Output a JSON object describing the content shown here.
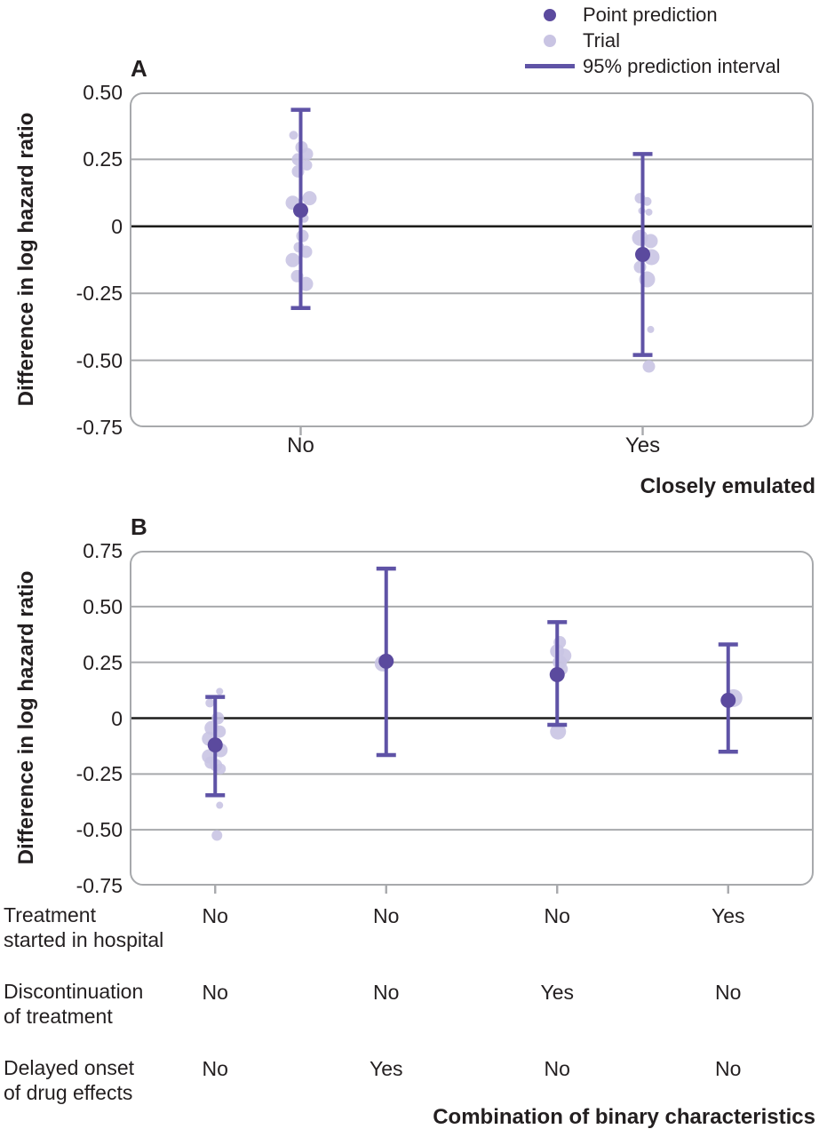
{
  "colors": {
    "point": "#5b4a9e",
    "trial": "#c9c4e3",
    "interval": "#5f53a6",
    "grid": "#a7a9ac",
    "zero_line": "#1d1d1b",
    "text": "#231f20"
  },
  "legend": {
    "items": [
      {
        "label": "Point prediction",
        "swatch": "dot",
        "color": "#5b4a9e"
      },
      {
        "label": "Trial",
        "swatch": "dot",
        "color": "#c9c4e3"
      },
      {
        "label": "95% prediction interval",
        "swatch": "line",
        "color": "#5f53a6"
      }
    ]
  },
  "chart_data": [
    {
      "panel": "A",
      "type": "scatter",
      "ylabel": "Difference in log hazard ratio",
      "xlabel": "Closely emulated",
      "ylim": [
        -0.75,
        0.5
      ],
      "ytick_values": [
        0.5,
        0.25,
        0,
        -0.25,
        -0.5,
        -0.75
      ],
      "ytick_labels": [
        "0.50",
        "0.25",
        "0",
        "-0.25",
        "-0.50",
        "-0.75"
      ],
      "grid": true,
      "legend_position": "top-right",
      "categories": [
        "No",
        "Yes"
      ],
      "groups": [
        {
          "category": "No",
          "point_prediction": 0.06,
          "interval": [
            -0.305,
            0.435
          ],
          "trials": [
            [
              -8,
              0.34,
              5
            ],
            [
              1,
              0.295,
              7
            ],
            [
              7,
              0.27,
              7
            ],
            [
              -3,
              0.25,
              7
            ],
            [
              7,
              0.228,
              6
            ],
            [
              -3,
              0.205,
              7
            ],
            [
              10,
              0.105,
              8
            ],
            [
              -9,
              0.088,
              8
            ],
            [
              4,
              0.03,
              5
            ],
            [
              2,
              -0.036,
              7
            ],
            [
              -2,
              -0.078,
              6
            ],
            [
              6,
              -0.095,
              7
            ],
            [
              -9,
              -0.126,
              8
            ],
            [
              -4,
              -0.186,
              7
            ],
            [
              6,
              -0.215,
              8
            ]
          ]
        },
        {
          "category": "Yes",
          "point_prediction": -0.105,
          "interval": [
            -0.48,
            0.27
          ],
          "trials": [
            [
              -3,
              0.105,
              6
            ],
            [
              5,
              0.093,
              5
            ],
            [
              -1,
              0.058,
              4
            ],
            [
              7,
              0.053,
              4
            ],
            [
              -3,
              -0.043,
              9
            ],
            [
              9,
              -0.055,
              8
            ],
            [
              10,
              -0.115,
              9
            ],
            [
              -3,
              -0.152,
              7
            ],
            [
              5,
              -0.198,
              9
            ],
            [
              9,
              -0.385,
              4
            ],
            [
              7,
              -0.523,
              7
            ]
          ]
        }
      ]
    },
    {
      "panel": "B",
      "type": "scatter",
      "ylabel": "Difference in log hazard ratio",
      "xlabel": "Combination of binary characteristics",
      "ylim": [
        -0.75,
        0.75
      ],
      "ytick_values": [
        0.75,
        0.5,
        0.25,
        0,
        -0.25,
        -0.5,
        -0.75
      ],
      "ytick_labels": [
        "0.75",
        "0.50",
        "0.25",
        "0",
        "-0.25",
        "-0.50",
        "-0.75"
      ],
      "grid": true,
      "categories": [
        "No/No/No",
        "No/No/Yes",
        "No/Yes/No",
        "Yes/No/No"
      ],
      "groups": [
        {
          "point_prediction": -0.12,
          "interval": [
            -0.345,
            0.095
          ],
          "trials": [
            [
              5,
              0.12,
              4
            ],
            [
              -6,
              0.068,
              5
            ],
            [
              3,
              0.0,
              7
            ],
            [
              -4,
              -0.044,
              8
            ],
            [
              5,
              -0.06,
              7
            ],
            [
              -7,
              -0.092,
              8
            ],
            [
              6,
              -0.143,
              8
            ],
            [
              -7,
              -0.171,
              8
            ],
            [
              -5,
              -0.199,
              7
            ],
            [
              1,
              -0.211,
              7
            ],
            [
              6,
              -0.227,
              6
            ],
            [
              5,
              -0.39,
              4
            ],
            [
              2,
              -0.525,
              6
            ]
          ]
        },
        {
          "point_prediction": 0.255,
          "interval": [
            -0.165,
            0.67
          ],
          "trials": [
            [
              -4,
              0.245,
              9
            ]
          ]
        },
        {
          "point_prediction": 0.195,
          "interval": [
            -0.03,
            0.43
          ],
          "trials": [
            [
              3,
              0.34,
              7
            ],
            [
              0,
              0.3,
              8
            ],
            [
              8,
              0.28,
              8
            ],
            [
              3,
              0.25,
              8
            ],
            [
              5,
              0.22,
              7
            ],
            [
              -1,
              0.2,
              6
            ],
            [
              1,
              -0.06,
              9
            ]
          ]
        },
        {
          "point_prediction": 0.08,
          "interval": [
            -0.15,
            0.33
          ],
          "trials": [
            [
              6,
              0.09,
              10
            ]
          ]
        }
      ],
      "table": {
        "rows": [
          {
            "label_lines": [
              "Treatment",
              "started in hospital"
            ],
            "values": [
              "No",
              "No",
              "No",
              "Yes"
            ]
          },
          {
            "label_lines": [
              "Discontinuation",
              "of treatment"
            ],
            "values": [
              "No",
              "No",
              "Yes",
              "No"
            ]
          },
          {
            "label_lines": [
              "Delayed onset",
              "of drug effects"
            ],
            "values": [
              "No",
              "Yes",
              "No",
              "No"
            ]
          }
        ]
      }
    }
  ]
}
